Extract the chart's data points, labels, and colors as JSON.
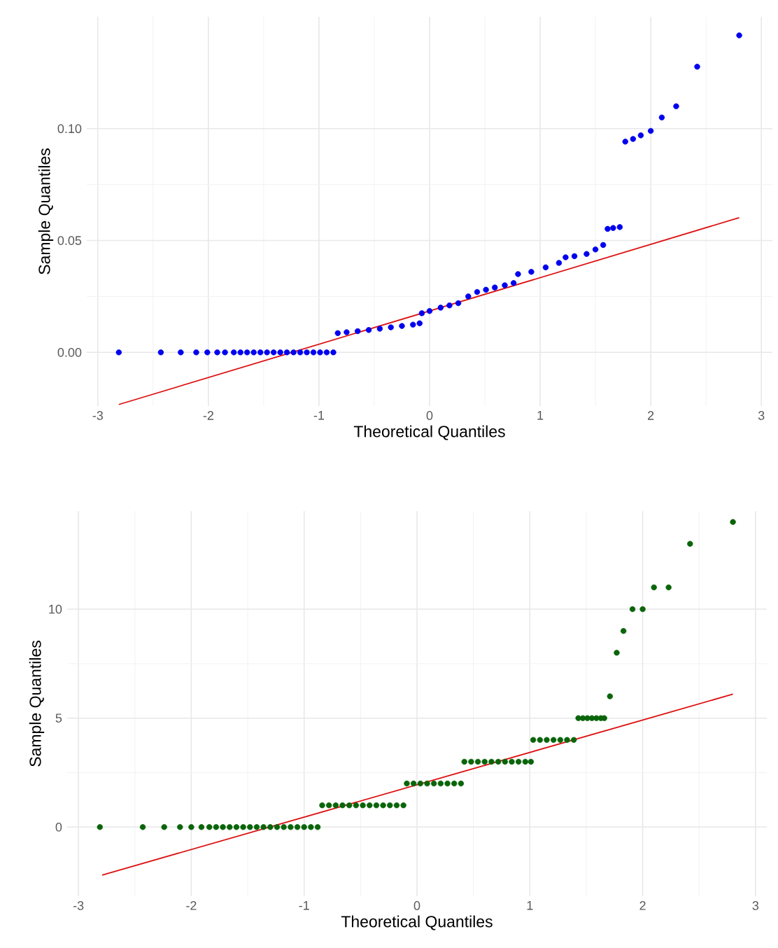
{
  "chart_data": [
    {
      "type": "scatter",
      "xlabel": "Theoretical Quantiles",
      "ylabel": "Sample Quantiles",
      "xlim": [
        -3.1,
        3.1
      ],
      "ylim": [
        -0.024,
        0.15
      ],
      "xticks": [
        -3,
        -2,
        -1,
        0,
        1,
        2,
        3
      ],
      "yticks": [
        {
          "value": 0,
          "label": "0.00"
        },
        {
          "value": 0.05,
          "label": "0.05"
        },
        {
          "value": 0.1,
          "label": "0.10"
        }
      ],
      "grid": true,
      "series": [
        {
          "marker": "circle",
          "color": "#0000ee",
          "x": [
            -2.81,
            -2.43,
            -2.25,
            -2.11,
            -2.01,
            -1.92,
            -1.85,
            -1.77,
            -1.71,
            -1.65,
            -1.59,
            -1.53,
            -1.47,
            -1.41,
            -1.35,
            -1.29,
            -1.23,
            -1.17,
            -1.11,
            -1.05,
            -0.99,
            -0.93,
            -0.87,
            -0.83,
            -0.75,
            -0.65,
            -0.55,
            -0.45,
            -0.35,
            -0.25,
            -0.15,
            -0.09,
            -0.07,
            0.0,
            0.1,
            0.18,
            0.26,
            0.35,
            0.43,
            0.51,
            0.59,
            0.68,
            0.76,
            0.8,
            0.92,
            1.05,
            1.17,
            1.23,
            1.31,
            1.42,
            1.5,
            1.57,
            1.61,
            1.66,
            1.72,
            1.77,
            1.84,
            1.91,
            2.0,
            2.1,
            2.23,
            2.42,
            2.8
          ],
          "values": [
            0,
            0,
            0,
            0,
            0,
            0,
            0,
            0,
            0,
            0,
            0,
            0,
            0,
            0,
            0,
            0,
            0,
            0,
            0,
            0,
            0,
            0,
            0,
            0.0086,
            0.009,
            0.0095,
            0.01,
            0.0106,
            0.0112,
            0.0118,
            0.0124,
            0.013,
            0.0175,
            0.0185,
            0.02,
            0.021,
            0.022,
            0.025,
            0.027,
            0.028,
            0.029,
            0.03,
            0.031,
            0.035,
            0.036,
            0.038,
            0.04,
            0.0425,
            0.043,
            0.044,
            0.046,
            0.048,
            0.0552,
            0.0556,
            0.056,
            0.0942,
            0.0954,
            0.097,
            0.099,
            0.105,
            0.11,
            0.1277,
            0.1417
          ]
        },
        {
          "type": "line",
          "marker": "none",
          "color": "#dd1111",
          "x": [
            -2.81,
            2.8
          ],
          "values": [
            -0.0233,
            0.0602
          ]
        }
      ]
    },
    {
      "type": "scatter",
      "xlabel": "Theoretical Quantiles",
      "ylabel": "Sample Quantiles",
      "xlim": [
        -3.1,
        3.1
      ],
      "ylim": [
        -3.17,
        14.5
      ],
      "xticks": [
        -3,
        -2,
        -1,
        0,
        1,
        2,
        3
      ],
      "yticks": [
        0,
        5,
        10
      ],
      "grid": true,
      "series": [
        {
          "marker": "circle",
          "color": "#0a640a",
          "x": [
            -2.81,
            -2.43,
            -2.24,
            -2.1,
            -2.0,
            -1.91,
            -1.84,
            -1.78,
            -1.72,
            -1.66,
            -1.6,
            -1.54,
            -1.48,
            -1.42,
            -1.36,
            -1.3,
            -1.24,
            -1.18,
            -1.12,
            -1.06,
            -1.0,
            -0.94,
            -0.88,
            -0.84,
            -0.78,
            -0.72,
            -0.66,
            -0.6,
            -0.54,
            -0.48,
            -0.42,
            -0.36,
            -0.3,
            -0.24,
            -0.18,
            -0.12,
            -0.09,
            -0.03,
            0.03,
            0.09,
            0.15,
            0.21,
            0.27,
            0.33,
            0.39,
            0.42,
            0.48,
            0.54,
            0.6,
            0.66,
            0.72,
            0.78,
            0.84,
            0.9,
            0.96,
            1.01,
            1.03,
            1.09,
            1.15,
            1.21,
            1.27,
            1.33,
            1.39,
            1.43,
            1.47,
            1.51,
            1.55,
            1.59,
            1.63,
            1.66,
            1.71,
            1.77,
            1.83,
            1.91,
            2.0,
            2.1,
            2.23,
            2.42,
            2.8
          ],
          "values": [
            0,
            0,
            0,
            0,
            0,
            0,
            0,
            0,
            0,
            0,
            0,
            0,
            0,
            0,
            0,
            0,
            0,
            0,
            0,
            0,
            0,
            0,
            0,
            1,
            1,
            1,
            1,
            1,
            1,
            1,
            1,
            1,
            1,
            1,
            1,
            1,
            2,
            2,
            2,
            2,
            2,
            2,
            2,
            2,
            2,
            3,
            3,
            3,
            3,
            3,
            3,
            3,
            3,
            3,
            3,
            3,
            4,
            4,
            4,
            4,
            4,
            4,
            4,
            5,
            5,
            5,
            5,
            5,
            5,
            5,
            6,
            8,
            9,
            10,
            10,
            11,
            11,
            13,
            14
          ]
        },
        {
          "type": "line",
          "marker": "none",
          "color": "#dd1111",
          "x": [
            -2.79,
            2.8
          ],
          "values": [
            -2.2,
            6.1
          ]
        }
      ]
    }
  ]
}
